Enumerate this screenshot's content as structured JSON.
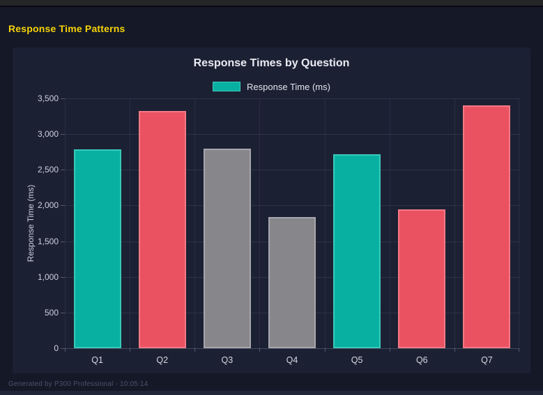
{
  "page": {
    "heading": "Response Time Patterns",
    "footer": "Generated by P300 Professional - 10:05:14"
  },
  "chart_data": {
    "type": "bar",
    "title": "Response Times by Question",
    "categories": [
      "Q1",
      "Q2",
      "Q3",
      "Q4",
      "Q5",
      "Q6",
      "Q7"
    ],
    "series": [
      {
        "name": "Response Time (ms)",
        "values": [
          2790,
          3320,
          2800,
          1840,
          2720,
          1950,
          3400
        ]
      }
    ],
    "bar_colors": [
      "#08b0a2",
      "#ea5262",
      "#86868b",
      "#86868b",
      "#08b0a2",
      "#ea5262",
      "#ea5262"
    ],
    "bar_border_colors": [
      "#38cab9",
      "#f17a86",
      "#a6a6ac",
      "#a6a6ac",
      "#38cab9",
      "#f17a86",
      "#f17a86"
    ],
    "xlabel": "",
    "ylabel": "Response Time (ms)",
    "ylim": [
      0,
      3500
    ],
    "ytick_values": [
      0,
      500,
      1000,
      1500,
      2000,
      2500,
      3000,
      3500
    ],
    "ytick_labels": [
      "0",
      "500",
      "1,000",
      "1,500",
      "2,000",
      "2,500",
      "3,000",
      "3,500"
    ],
    "grid": true,
    "legend_position": "top",
    "legend_color": "#08b0a2"
  }
}
